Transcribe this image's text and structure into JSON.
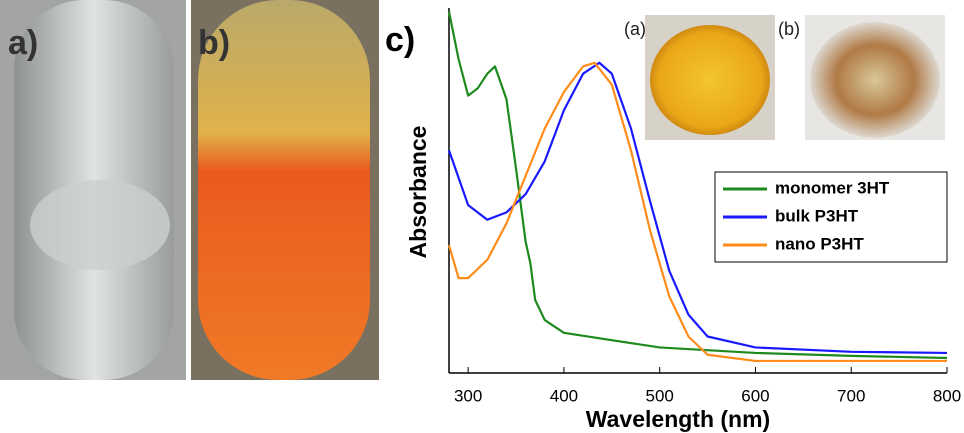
{
  "panel_labels": [
    "a)",
    "b)",
    "c)"
  ],
  "inset_labels": [
    "(a)",
    "(b)"
  ],
  "chart_data": {
    "type": "line",
    "xlabel": "Wavelength (nm)",
    "ylabel": "Absorbance",
    "xlim": [
      280,
      800
    ],
    "xticks": [
      300,
      400,
      500,
      600,
      700,
      800
    ],
    "ylim": [
      0,
      1
    ],
    "legend": "right",
    "series": [
      {
        "name": "monomer 3HT",
        "color": "#1e8a1e",
        "x": [
          280,
          290,
          300,
          310,
          320,
          328,
          340,
          350,
          360,
          365,
          370,
          380,
          400,
          450,
          500,
          600,
          700,
          800
        ],
        "values": [
          0.99,
          0.86,
          0.76,
          0.78,
          0.82,
          0.84,
          0.75,
          0.56,
          0.36,
          0.3,
          0.2,
          0.145,
          0.11,
          0.09,
          0.07,
          0.055,
          0.047,
          0.041
        ]
      },
      {
        "name": "bulk P3HT",
        "color": "#1a1aff",
        "x": [
          280,
          300,
          320,
          340,
          360,
          380,
          400,
          420,
          437,
          450,
          470,
          490,
          510,
          530,
          550,
          600,
          700,
          800
        ],
        "values": [
          0.61,
          0.46,
          0.42,
          0.44,
          0.49,
          0.58,
          0.72,
          0.82,
          0.85,
          0.82,
          0.67,
          0.47,
          0.28,
          0.16,
          0.1,
          0.07,
          0.058,
          0.055
        ]
      },
      {
        "name": "nano P3HT",
        "color": "#ff8c1a",
        "x": [
          280,
          290,
          300,
          320,
          340,
          360,
          380,
          400,
          420,
          432,
          450,
          470,
          490,
          510,
          530,
          550,
          600,
          700,
          800
        ],
        "values": [
          0.35,
          0.26,
          0.26,
          0.31,
          0.41,
          0.54,
          0.67,
          0.77,
          0.84,
          0.85,
          0.79,
          0.61,
          0.39,
          0.21,
          0.1,
          0.05,
          0.033,
          0.033,
          0.033
        ]
      }
    ]
  }
}
